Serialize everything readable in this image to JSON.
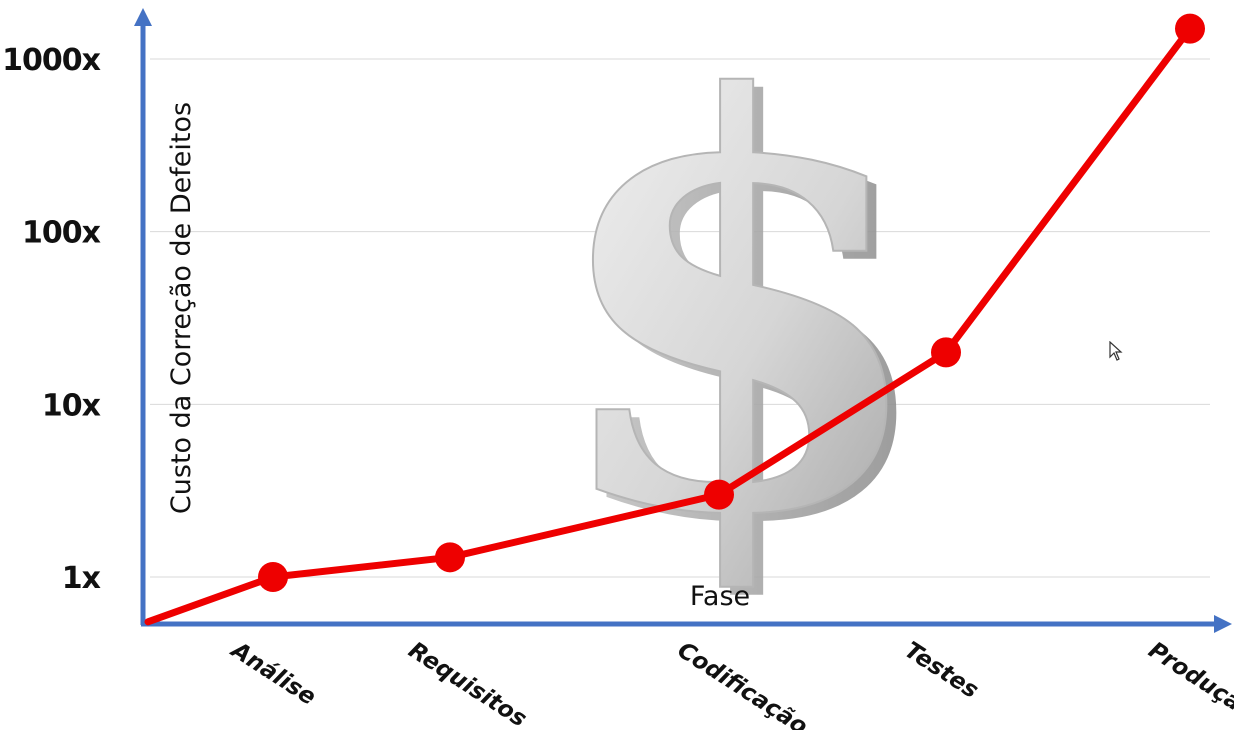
{
  "chart_data": {
    "type": "line",
    "ylabel": "Custo da Correção de Defeitos",
    "xlabel": "Fase",
    "y_scale": "log",
    "ylim": [
      0.5,
      1000
    ],
    "y_ticks": [
      {
        "value": 1,
        "label": "1x"
      },
      {
        "value": 10,
        "label": "10x"
      },
      {
        "value": 100,
        "label": "100x"
      },
      {
        "value": 1000,
        "label": "1000x"
      }
    ],
    "categories": [
      "Análise",
      "Requisitos",
      "Codificação",
      "Testes",
      "Produção"
    ],
    "series": [
      {
        "color": "#ee0000",
        "origin_value": 0.55,
        "values": [
          1,
          1.3,
          3,
          20,
          1500
        ]
      }
    ],
    "grid": "horizontal",
    "colors": {
      "axis": "#4472c4",
      "line": "#ee0000",
      "grid": "#d9d9d9"
    },
    "background_icon": "dollar-sign-icon"
  }
}
